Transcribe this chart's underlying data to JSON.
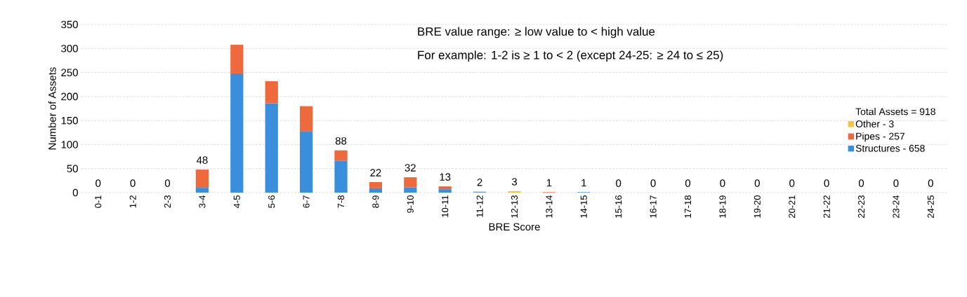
{
  "chart_data": {
    "type": "bar",
    "stacked": true,
    "xlabel": "BRE Score",
    "ylabel": "Number of Assets",
    "categories": [
      "0-1",
      "1-2",
      "2-3",
      "3-4",
      "4-5",
      "5-6",
      "6-7",
      "7-8",
      "8-9",
      "9-10",
      "10-11",
      "11-12",
      "12-13",
      "13-14",
      "14-15",
      "15-16",
      "16-17",
      "17-18",
      "18-19",
      "19-20",
      "20-21",
      "21-22",
      "22-23",
      "23-24",
      "24-25"
    ],
    "series": [
      {
        "name": "Structures - 658",
        "color": "#3a8fdc",
        "values": [
          0,
          0,
          0,
          10,
          248,
          186,
          128,
          66,
          9,
          11,
          7,
          1,
          0,
          0,
          1,
          0,
          0,
          0,
          0,
          0,
          0,
          0,
          0,
          0,
          0
        ]
      },
      {
        "name": "Pipes - 257",
        "color": "#ee6a3c",
        "values": [
          0,
          0,
          0,
          38,
          60,
          46,
          52,
          22,
          13,
          21,
          6,
          1,
          0,
          1,
          0,
          0,
          0,
          0,
          0,
          0,
          0,
          0,
          0,
          0,
          0
        ]
      },
      {
        "name": "Other - 3",
        "color": "#f5c342",
        "values": [
          0,
          0,
          0,
          0,
          0,
          0,
          0,
          0,
          0,
          0,
          0,
          0,
          3,
          0,
          0,
          0,
          0,
          0,
          0,
          0,
          0,
          0,
          0,
          0,
          0
        ]
      }
    ],
    "totals": [
      "0",
      "0",
      "0",
      "48",
      null,
      null,
      null,
      "88",
      "22",
      "32",
      "13",
      "2",
      "3",
      "1",
      "1",
      "0",
      "0",
      "0",
      "0",
      "0",
      "0",
      "0",
      "0",
      "0",
      "0"
    ],
    "ylim": [
      0,
      350
    ],
    "yticks": [
      0,
      50,
      100,
      150,
      200,
      250,
      300,
      350
    ],
    "grid": "y",
    "legend": "right",
    "legend_title": "Total Assets = 918",
    "annotations": [
      "BRE value range: ≥ low value to < high value",
      "For example: 1-2 is ≥ 1 to < 2 (except 24-25: ≥ 24 to ≤ 25)"
    ]
  }
}
